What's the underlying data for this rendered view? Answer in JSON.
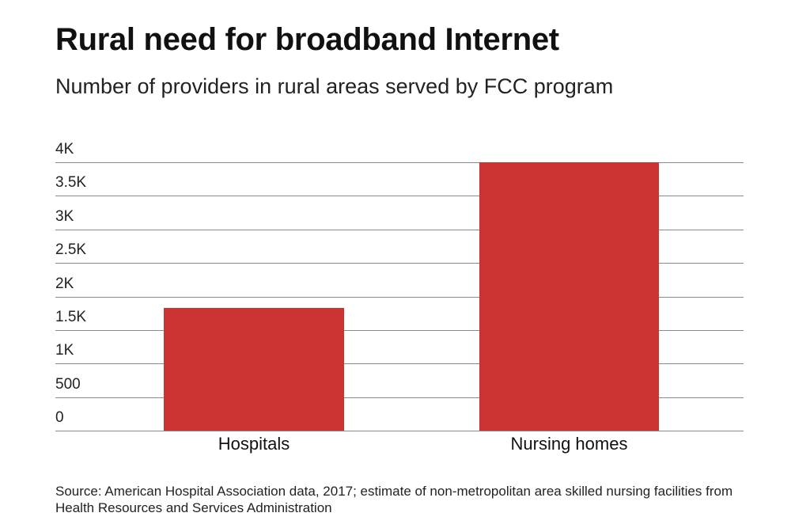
{
  "title": "Rural need for broadband Internet",
  "subtitle": "Number of providers in rural areas served by FCC program",
  "source": "Source: American Hospital Association data, 2017; estimate of non-metropolitan area skilled nursing facilities from Health Resources and Services Administration",
  "colors": {
    "bar": "#cc3333",
    "grid": "#8a8a8a"
  },
  "chart_data": {
    "type": "bar",
    "title": "Rural need for broadband Internet",
    "subtitle": "Number of providers in rural areas served by FCC program",
    "categories": [
      "Hospitals",
      "Nursing homes"
    ],
    "values": [
      1825,
      4000
    ],
    "xlabel": "",
    "ylabel": "",
    "ylim": [
      0,
      4000
    ],
    "yticks": [
      0,
      500,
      1000,
      1500,
      2000,
      2500,
      3000,
      3500,
      4000
    ],
    "ytick_labels": [
      "0",
      "500",
      "1K",
      "1.5K",
      "2K",
      "2.5K",
      "3K",
      "3.5K",
      "4K"
    ],
    "grid": true,
    "legend": null
  }
}
